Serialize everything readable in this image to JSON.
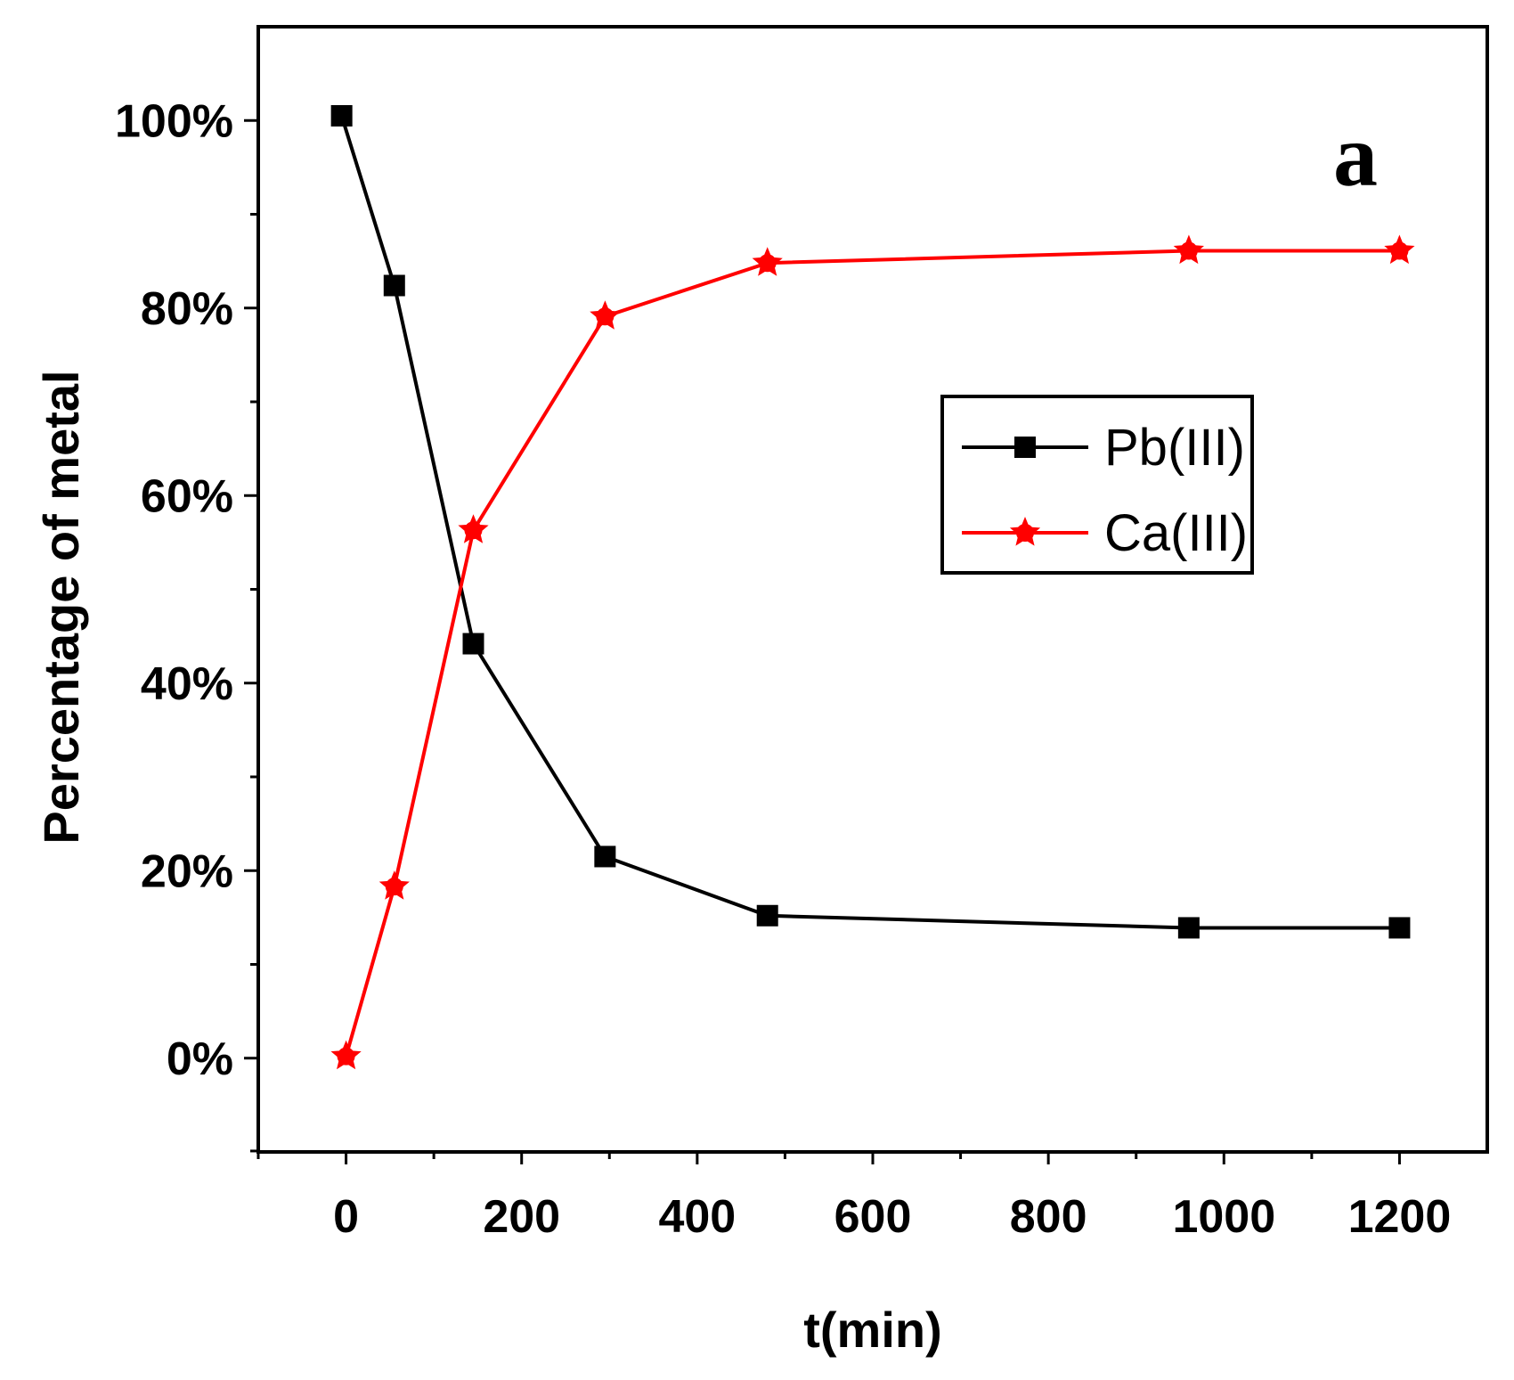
{
  "chart_data": {
    "type": "line",
    "panel_label": "a",
    "title": "",
    "xlabel": "t(min)",
    "ylabel": "Percentage of metal",
    "xlim": [
      -100,
      1300
    ],
    "ylim": [
      -0.1,
      1.1
    ],
    "x_ticks": [
      0,
      200,
      400,
      600,
      800,
      1000,
      1200
    ],
    "x_tick_labels": [
      "0",
      "200",
      "400",
      "600",
      "800",
      "1000",
      "1200"
    ],
    "y_ticks": [
      0,
      0.2,
      0.4,
      0.6,
      0.8,
      1.0
    ],
    "y_tick_labels": [
      "0%",
      "20%",
      "40%",
      "60%",
      "80%",
      "100%"
    ],
    "grid": false,
    "legend_position": "upper-right",
    "series": [
      {
        "name": "Pb(III)",
        "color": "#000000",
        "marker": "square",
        "x": [
          -5,
          55,
          145,
          295,
          480,
          960,
          1200
        ],
        "y": [
          1.005,
          0.824,
          0.442,
          0.215,
          0.152,
          0.139,
          0.139
        ]
      },
      {
        "name": "Ca(III)",
        "color": "#ff0000",
        "marker": "star",
        "x": [
          0,
          55,
          145,
          295,
          480,
          960,
          1200
        ],
        "y": [
          0.002,
          0.183,
          0.563,
          0.791,
          0.848,
          0.861,
          0.861
        ]
      }
    ]
  }
}
